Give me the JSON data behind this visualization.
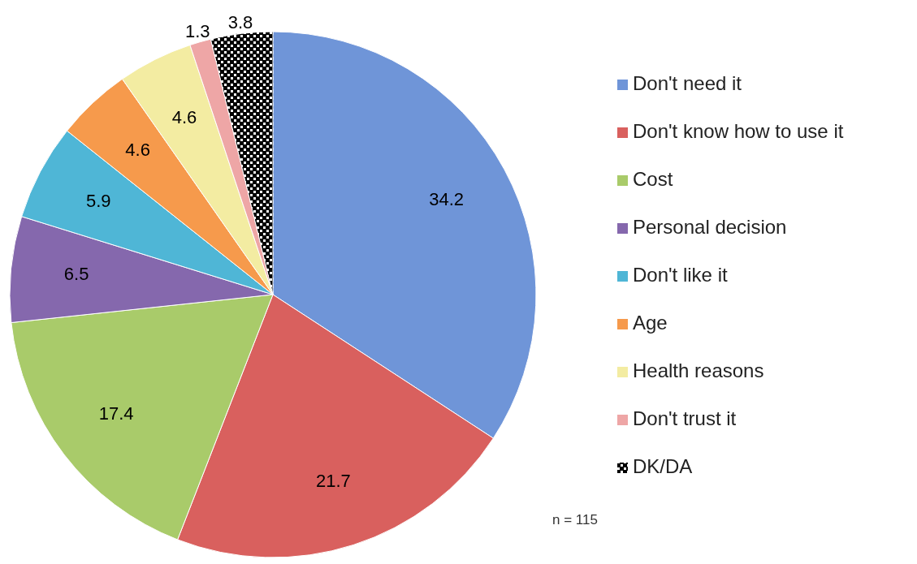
{
  "chart_data": {
    "type": "pie",
    "categories": [
      "Don't need it",
      "Don't know how to use it",
      "Cost",
      "Personal decision",
      "Don't like it",
      "Age",
      "Health reasons",
      "Don't trust it",
      "DK/DA"
    ],
    "values": [
      34.2,
      21.7,
      17.4,
      6.5,
      5.9,
      4.6,
      4.6,
      1.3,
      3.8
    ],
    "colors": [
      "#6f95d8",
      "#d9605e",
      "#a9cb6a",
      "#8568ad",
      "#4fb6d6",
      "#f69a4c",
      "#f3eca2",
      "#eea6a6",
      "#000000"
    ],
    "data_labels": true,
    "legend": "right",
    "annotations": [
      "n = 115"
    ]
  }
}
